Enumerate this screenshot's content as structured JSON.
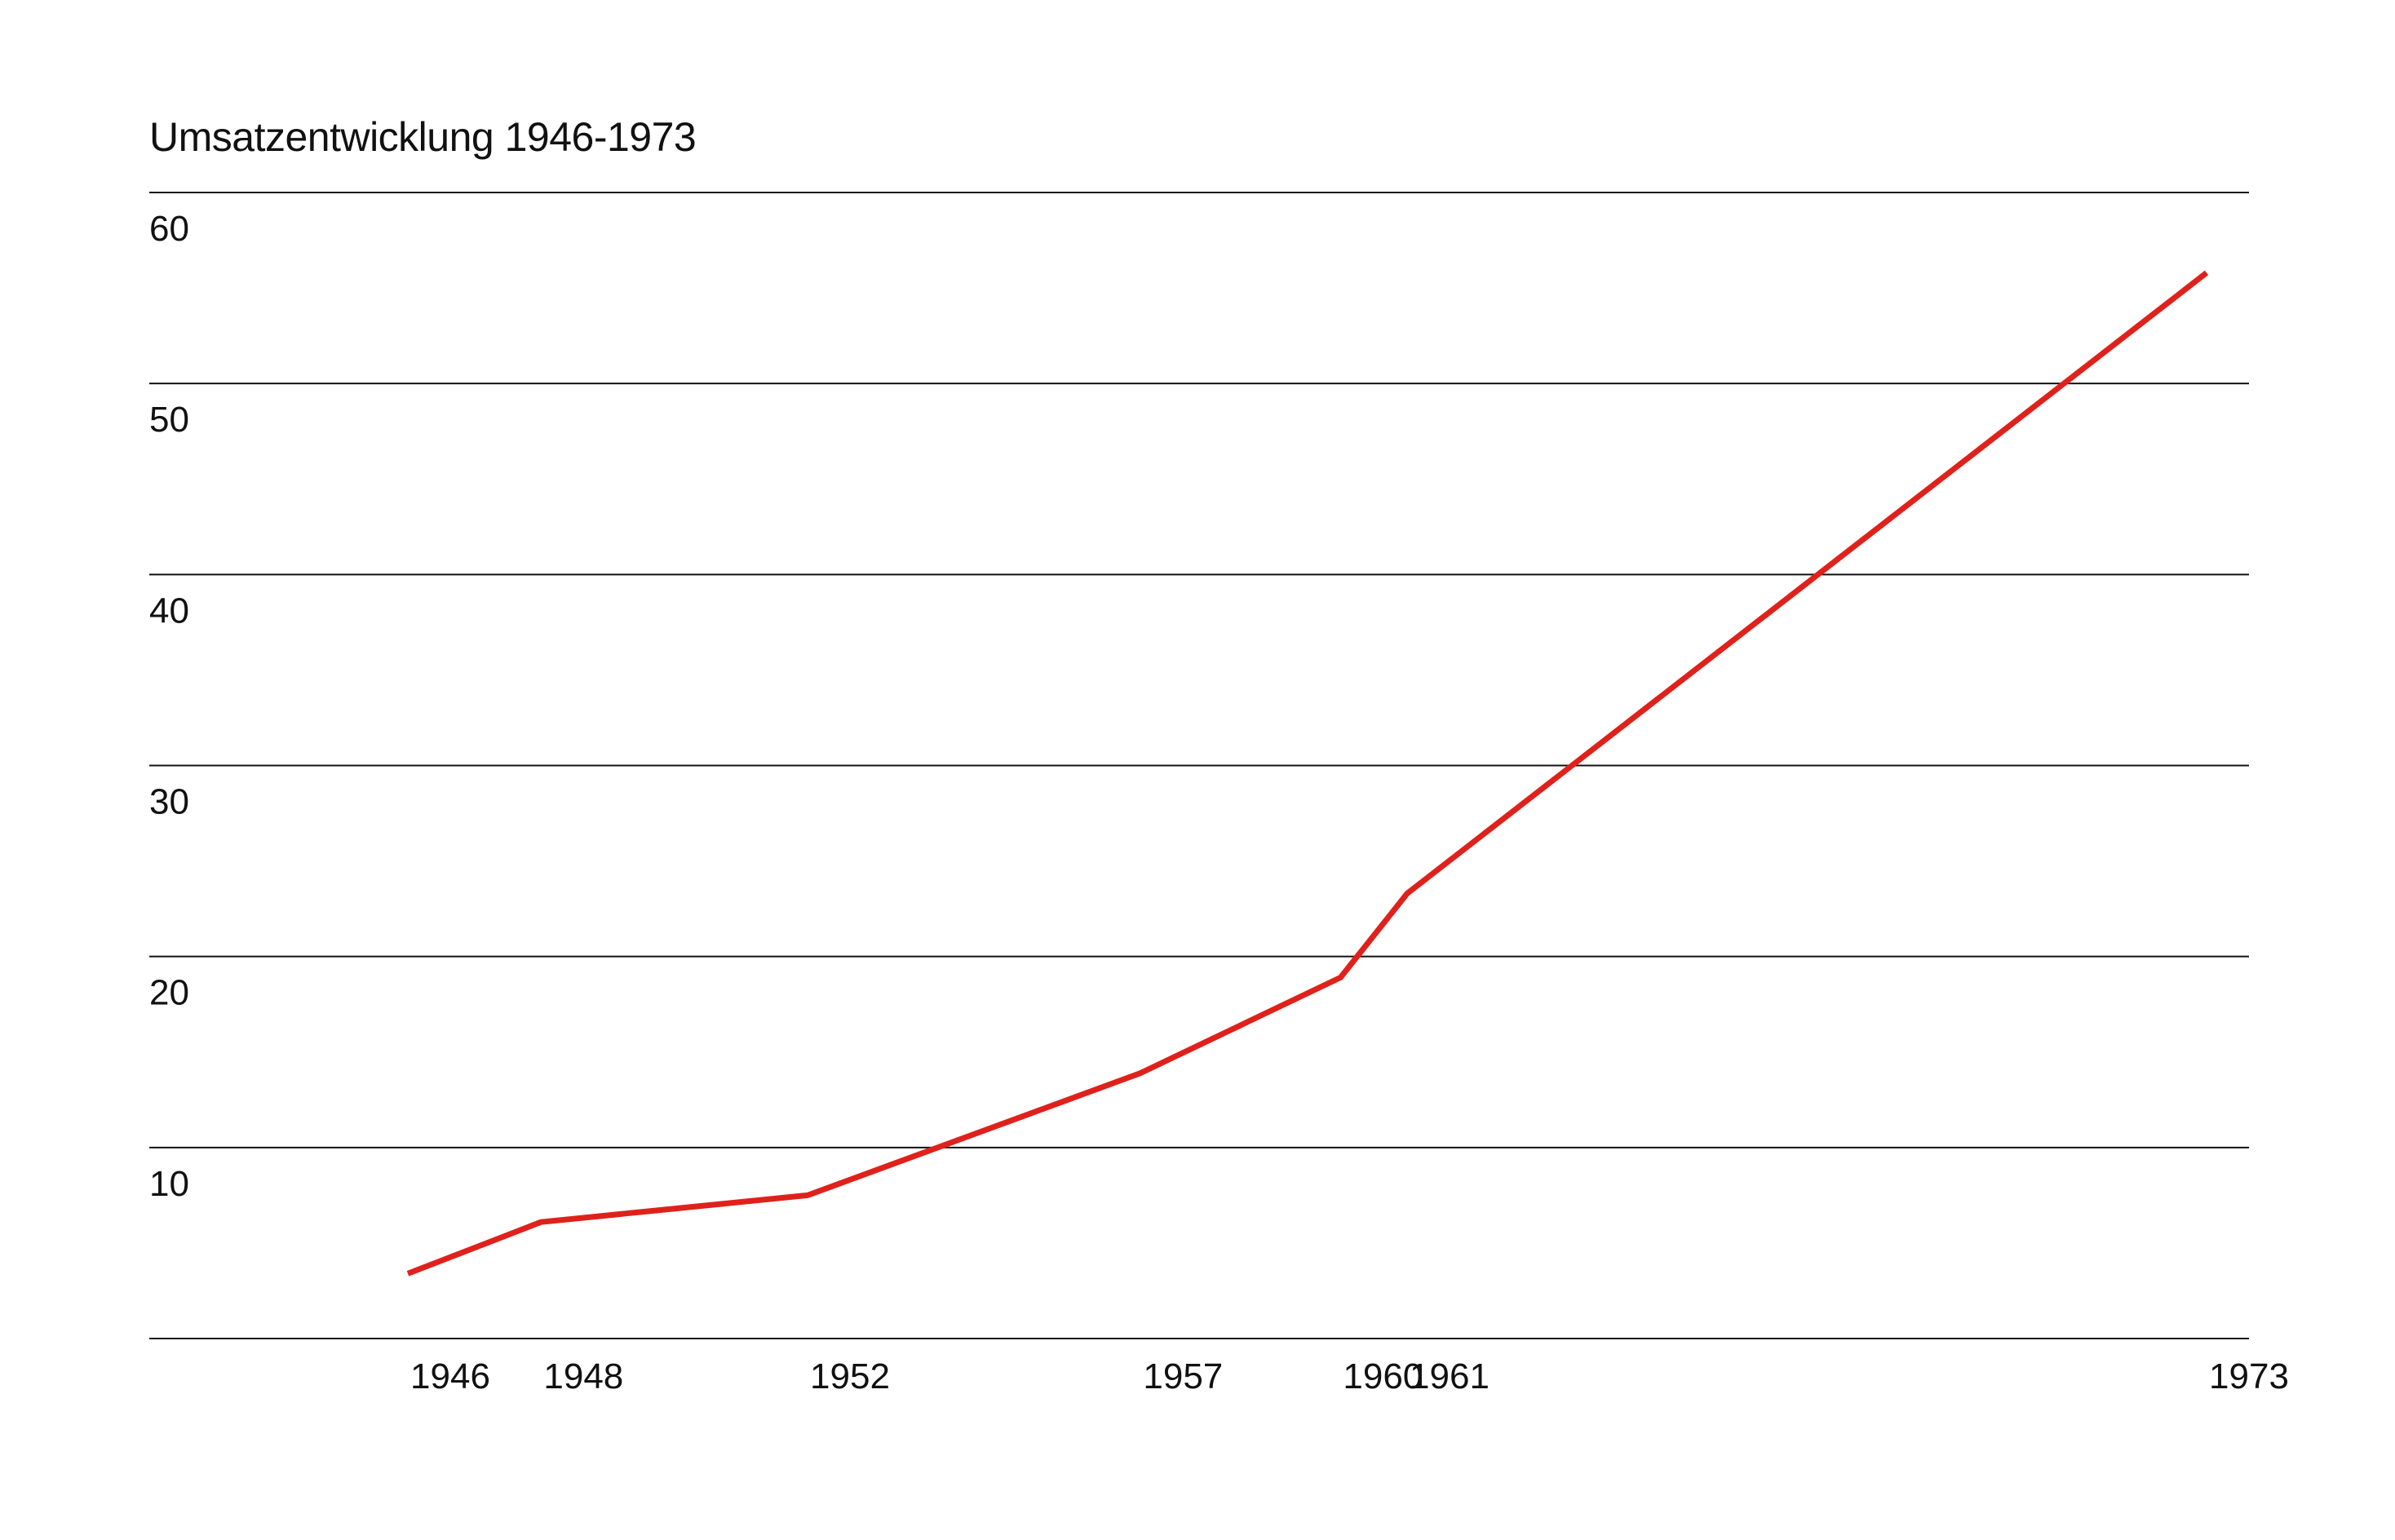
{
  "chart_data": {
    "type": "line",
    "title": "Umsatzentwicklung 1946-1973",
    "xlabel": "",
    "ylabel": "",
    "categories": [
      "1946",
      "1948",
      "1952",
      "1957",
      "1960",
      "1961",
      "1973"
    ],
    "x": [
      1946,
      1948,
      1952,
      1957,
      1960,
      1961,
      1973
    ],
    "series": [
      {
        "values": [
          3.4,
          6.1,
          7.5,
          13.9,
          18.9,
          23.3,
          55.8
        ],
        "color": "#e0211b"
      }
    ],
    "ylim": [
      0,
      60
    ],
    "yticks": [
      10,
      20,
      30,
      40,
      50,
      60
    ],
    "ytick_labels": [
      "10",
      "20",
      "30",
      "40",
      "50",
      "60"
    ],
    "grid": "horizontal",
    "legend": "none"
  },
  "colors": {
    "line": "#e0211b",
    "grid": "#111111",
    "text": "#111111"
  }
}
